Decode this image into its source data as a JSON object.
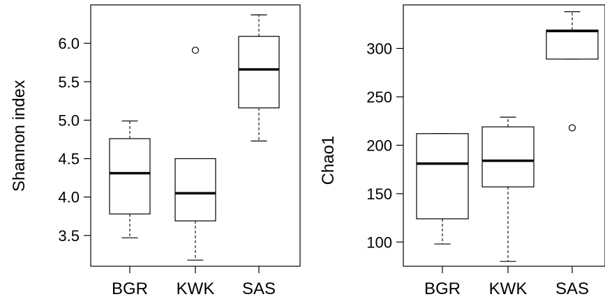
{
  "chart_data": [
    {
      "type": "box",
      "ylabel": "Shannon index",
      "ylim": [
        3.1,
        6.5
      ],
      "yticks": [
        3.5,
        4.0,
        4.5,
        5.0,
        5.5,
        6.0
      ],
      "ytick_labels": [
        "3.5",
        "4.0",
        "4.5",
        "5.0",
        "5.5",
        "6.0"
      ],
      "categories": [
        "BGR",
        "KWK",
        "SAS"
      ],
      "boxes": [
        {
          "category": "BGR",
          "whisker_low": 3.47,
          "q1": 3.78,
          "median": 4.31,
          "q3": 4.76,
          "whisker_high": 4.99,
          "outliers": []
        },
        {
          "category": "KWK",
          "whisker_low": 3.18,
          "q1": 3.69,
          "median": 4.05,
          "q3": 4.5,
          "whisker_high": 4.5,
          "outliers": [
            5.91
          ]
        },
        {
          "category": "SAS",
          "whisker_low": 4.73,
          "q1": 5.16,
          "median": 5.66,
          "q3": 6.09,
          "whisker_high": 6.37,
          "outliers": []
        }
      ]
    },
    {
      "type": "box",
      "ylabel": "Chao1",
      "ylim": [
        75,
        345
      ],
      "yticks": [
        100,
        150,
        200,
        250,
        300
      ],
      "ytick_labels": [
        "100",
        "150",
        "200",
        "250",
        "300"
      ],
      "categories": [
        "BGR",
        "KWK",
        "SAS"
      ],
      "boxes": [
        {
          "category": "BGR",
          "whisker_low": 98,
          "q1": 124,
          "median": 181,
          "q3": 212,
          "whisker_high": 212,
          "outliers": []
        },
        {
          "category": "KWK",
          "whisker_low": 80,
          "q1": 157,
          "median": 184,
          "q3": 219,
          "whisker_high": 229,
          "outliers": []
        },
        {
          "category": "SAS",
          "whisker_low": 289,
          "q1": 289,
          "median": 318,
          "q3": 319,
          "whisker_high": 338,
          "outliers": [
            218
          ]
        }
      ]
    }
  ]
}
